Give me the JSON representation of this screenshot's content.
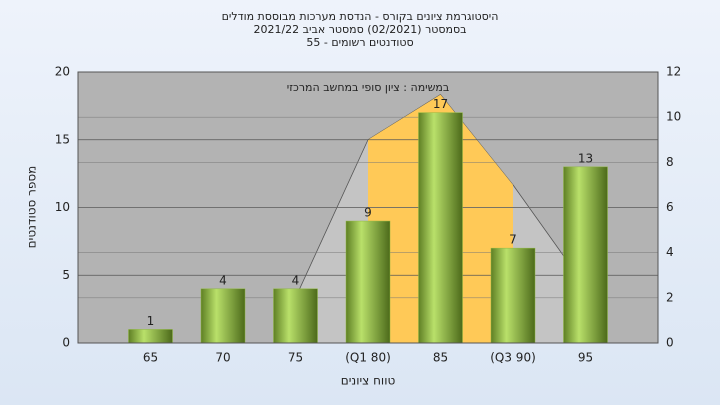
{
  "chart_data": {
    "type": "bar",
    "title_lines": [
      "היסטוגרמת ציונים בקורס - הנדסת מערכות מבוססת מודלים",
      "בסמסטר  (02/2021)  סמסטר אביב 2021/22",
      "סטודנטים רשומים - 55"
    ],
    "annotation": "במשימה : ציון סופי במחשב המרכזי",
    "x_label": "טווח ציונים",
    "y_label": "מספר סטודנטים",
    "categories": [
      "65",
      "70",
      "75",
      "(Q1 80)",
      "85",
      "(Q3 90)",
      "95"
    ],
    "values": [
      1,
      4,
      4,
      9,
      17,
      7,
      13
    ],
    "color": "#8fb840",
    "areas": [
      {
        "color": "#c4c4c4",
        "axis": "y2",
        "values": [
          null,
          null,
          2,
          9,
          11,
          7,
          2.5
        ]
      },
      {
        "color": "#ffc957",
        "axis": "y2",
        "values": [
          null,
          null,
          null,
          9,
          11,
          7,
          null
        ]
      }
    ],
    "ylim": [
      0,
      20
    ],
    "yticks": [
      0,
      5,
      10,
      15,
      20
    ],
    "y2lim": [
      0,
      12
    ],
    "y2ticks": [
      0,
      2,
      4,
      6,
      8,
      10,
      12
    ],
    "grid": true
  }
}
